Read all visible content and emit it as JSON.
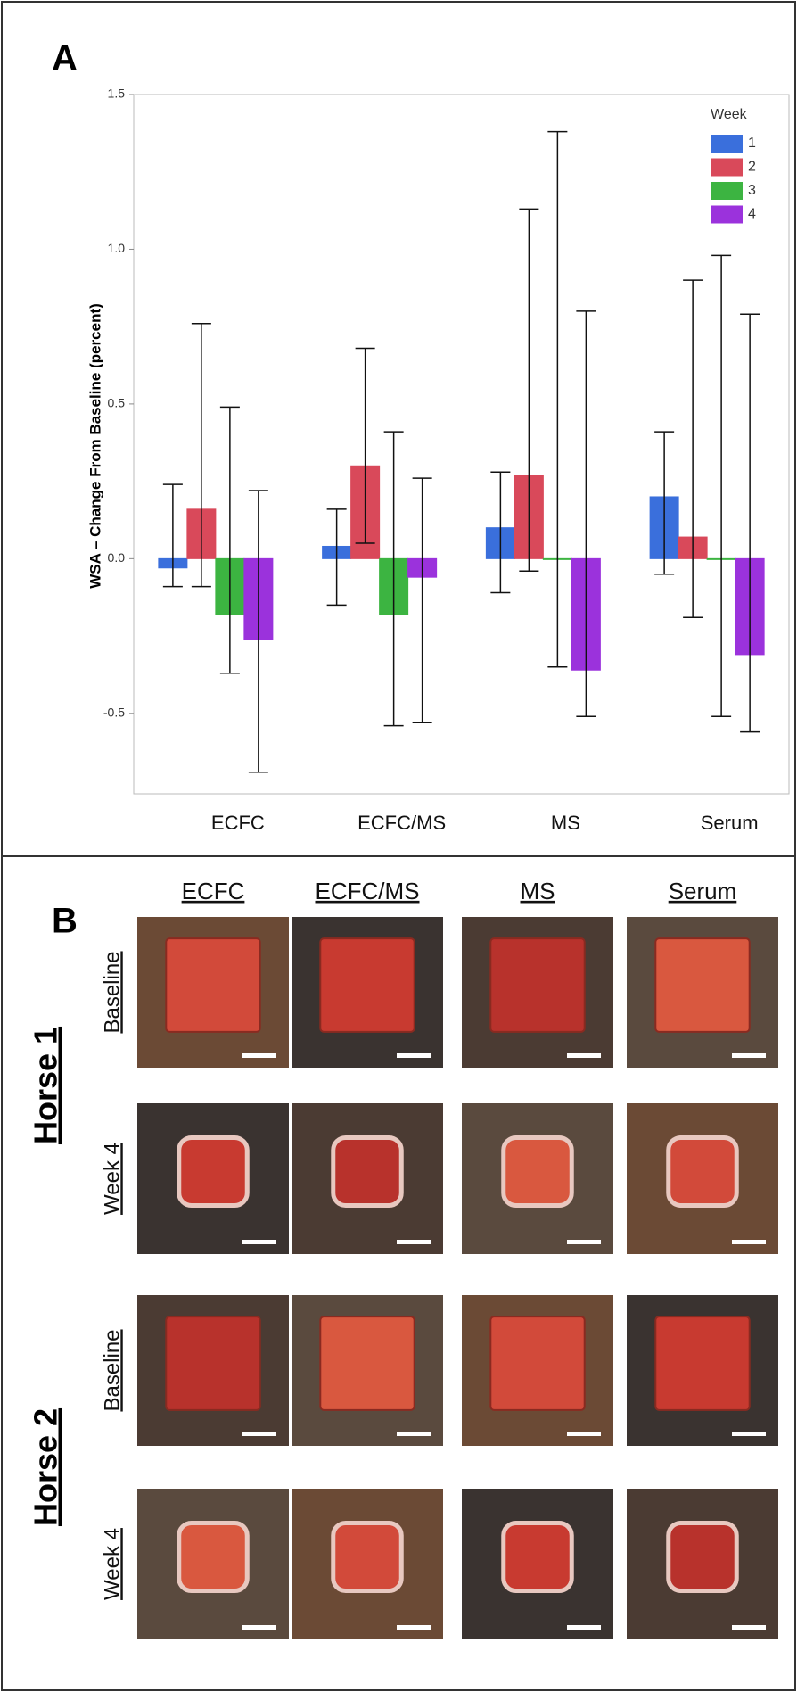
{
  "chart_data": {
    "type": "bar",
    "y_label": "WSA – Change From Baseline (percent)",
    "categories": [
      "ECFC",
      "ECFC/MS",
      "MS",
      "Serum"
    ],
    "legend_title": "Week",
    "legend_position": "upper right",
    "series": [
      {
        "name": "1",
        "color": "#3a6fdc",
        "values": [
          -0.03,
          0.04,
          0.1,
          0.2
        ],
        "lower": [
          -0.09,
          -0.15,
          -0.11,
          -0.05
        ],
        "upper": [
          0.24,
          0.16,
          0.28,
          0.41
        ]
      },
      {
        "name": "2",
        "color": "#d9495a",
        "values": [
          0.16,
          0.3,
          0.27,
          0.07
        ],
        "lower": [
          -0.09,
          0.05,
          -0.04,
          -0.19
        ],
        "upper": [
          0.76,
          0.68,
          1.13,
          0.9
        ]
      },
      {
        "name": "3",
        "color": "#3cb441",
        "values": [
          -0.18,
          -0.18,
          0.0,
          0.0
        ],
        "lower": [
          -0.37,
          -0.54,
          -0.35,
          -0.51
        ],
        "upper": [
          0.49,
          0.41,
          1.38,
          0.98
        ]
      },
      {
        "name": "4",
        "color": "#9b32dc",
        "values": [
          -0.26,
          -0.06,
          -0.36,
          -0.31
        ],
        "lower": [
          -0.69,
          -0.53,
          -0.51,
          -0.56
        ],
        "upper": [
          0.22,
          0.26,
          0.8,
          0.79
        ]
      }
    ],
    "ylim": [
      -0.76,
      1.5
    ],
    "yticks": [
      {
        "value": 1.5,
        "label": "1.5"
      },
      {
        "value": 1.0,
        "label": "1.0"
      },
      {
        "value": 0.5,
        "label": "0.5"
      },
      {
        "value": 0,
        "label": "0.0"
      },
      {
        "value": -0.5,
        "label": "-0.5"
      }
    ],
    "grid": false
  },
  "panels": {
    "a": "A",
    "b": "B"
  },
  "photo_grid": {
    "columns": [
      "ECFC",
      "ECFC/MS",
      "MS",
      "Serum"
    ],
    "horses": [
      {
        "name": "Horse 1",
        "rows": [
          "Baseline",
          "Week 4"
        ]
      },
      {
        "name": "Horse 2",
        "rows": [
          "Baseline",
          "Week 4"
        ]
      }
    ]
  }
}
